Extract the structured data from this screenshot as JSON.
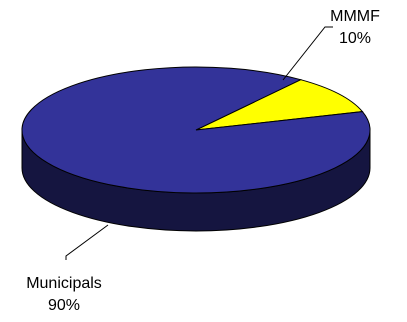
{
  "chart_data": {
    "type": "pie",
    "style": "3d",
    "title": "",
    "legend": "none",
    "slices": [
      {
        "name": "MMMF",
        "value": 10,
        "percent_label": "10%",
        "color": "#ffff00"
      },
      {
        "name": "Municipals",
        "value": 90,
        "percent_label": "90%",
        "color": "#333399"
      }
    ]
  }
}
